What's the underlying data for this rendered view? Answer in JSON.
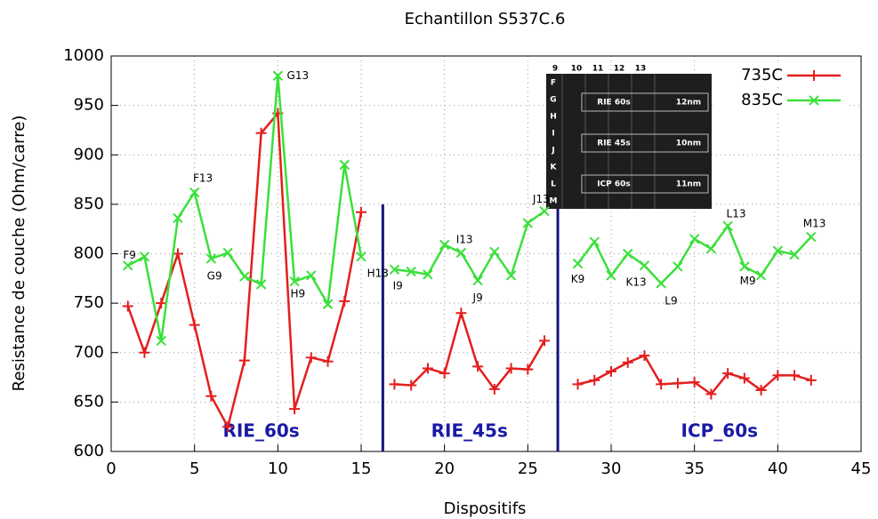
{
  "chart_data": {
    "type": "line",
    "title": "Echantillon S537C.6",
    "xlabel": "Dispositifs",
    "ylabel": "Resistance de couche (Ohm/carre)",
    "x": [
      1,
      2,
      3,
      4,
      5,
      6,
      7,
      8,
      9,
      10,
      11,
      12,
      13,
      14,
      15,
      16,
      17,
      18,
      19,
      20,
      21,
      22,
      23,
      24,
      25,
      26,
      27,
      28,
      29,
      30,
      31,
      32,
      33,
      34,
      35,
      36,
      37,
      38,
      39,
      40,
      41,
      42
    ],
    "series": [
      {
        "name": "735C",
        "color": "#e41e1e",
        "marker": "+",
        "values": [
          747,
          700,
          750,
          800,
          728,
          656,
          625,
          692,
          922,
          942,
          643,
          695,
          691,
          752,
          842,
          null,
          668,
          667,
          684,
          679,
          740,
          686,
          663,
          684,
          683,
          712,
          null,
          668,
          672,
          681,
          690,
          697,
          668,
          669,
          670,
          658,
          679,
          674,
          662,
          677,
          677,
          672
        ]
      },
      {
        "name": "835C",
        "color": "#3be03b",
        "marker": "x",
        "values": [
          788,
          797,
          712,
          836,
          862,
          795,
          801,
          777,
          769,
          980,
          772,
          778,
          749,
          890,
          797,
          null,
          784,
          782,
          779,
          809,
          801,
          773,
          802,
          778,
          831,
          843,
          null,
          790,
          812,
          778,
          800,
          788,
          770,
          787,
          815,
          805,
          828,
          787,
          778,
          803,
          799,
          817
        ]
      }
    ],
    "xlim": [
      0,
      45
    ],
    "xticks": [
      0,
      5,
      10,
      15,
      20,
      25,
      30,
      35,
      40,
      45
    ],
    "ylim": [
      600,
      1000
    ],
    "yticks": [
      600,
      650,
      700,
      750,
      800,
      850,
      900,
      950,
      1000
    ],
    "grid": true,
    "legend": "top-right",
    "annotations": [
      {
        "text": "F9",
        "x": 1.1,
        "y": 798
      },
      {
        "text": "F13",
        "x": 5.5,
        "y": 876
      },
      {
        "text": "G9",
        "x": 6.2,
        "y": 777
      },
      {
        "text": "G13",
        "x": 11.2,
        "y": 980
      },
      {
        "text": "H9",
        "x": 11.2,
        "y": 759
      },
      {
        "text": "H13",
        "x": 16.0,
        "y": 780
      },
      {
        "text": "I9",
        "x": 17.2,
        "y": 767
      },
      {
        "text": "I13",
        "x": 21.2,
        "y": 814
      },
      {
        "text": "J9",
        "x": 22.0,
        "y": 755
      },
      {
        "text": "J13",
        "x": 25.8,
        "y": 855
      },
      {
        "text": "K9",
        "x": 28.0,
        "y": 774
      },
      {
        "text": "K13",
        "x": 31.5,
        "y": 771
      },
      {
        "text": "L9",
        "x": 33.6,
        "y": 752
      },
      {
        "text": "L13",
        "x": 37.5,
        "y": 840
      },
      {
        "text": "M9",
        "x": 38.2,
        "y": 772
      },
      {
        "text": "M13",
        "x": 42.2,
        "y": 830
      }
    ],
    "regions": [
      {
        "label": "RIE_60s",
        "x": 9
      },
      {
        "label": "RIE_45s",
        "x": 21.5
      },
      {
        "label": "ICP_60s",
        "x": 36.5
      }
    ],
    "dividers": [
      16.3,
      26.8
    ],
    "divider_top": 850,
    "inset": {
      "columns": [
        "9",
        "10",
        "11",
        "12",
        "13"
      ],
      "rows": [
        "F",
        "G",
        "H",
        "I",
        "J",
        "K",
        "L",
        "M"
      ],
      "zones": [
        {
          "name": "RIE 60s",
          "thickness": "12nm"
        },
        {
          "name": "RIE 45s",
          "thickness": "10nm"
        },
        {
          "name": "ICP 60s",
          "thickness": "11nm"
        }
      ]
    }
  }
}
